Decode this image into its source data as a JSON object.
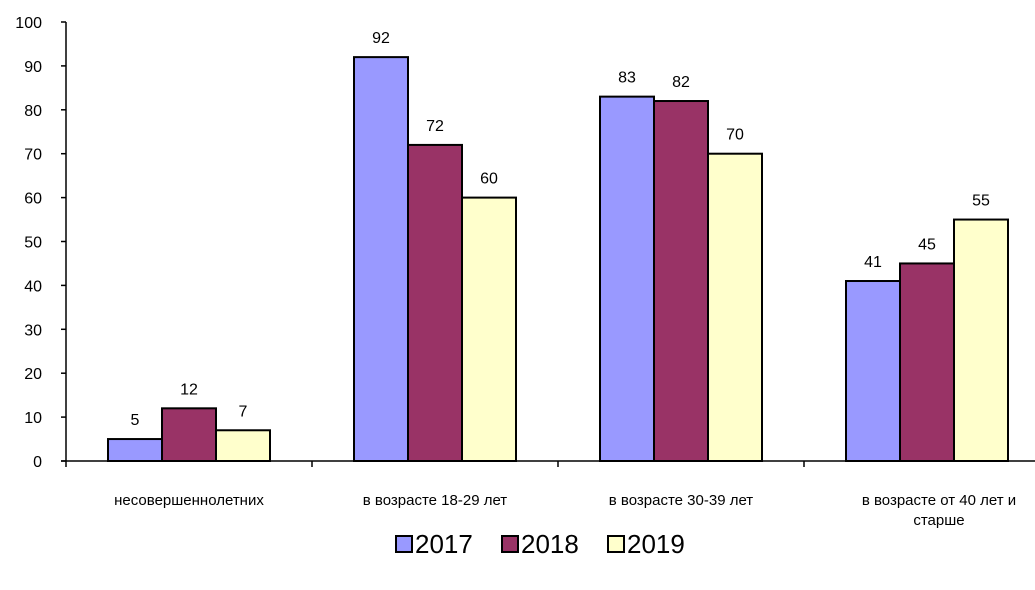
{
  "chart_data": {
    "type": "bar",
    "categories": [
      [
        "несовершеннолетних"
      ],
      [
        "в возрасте 18-29 лет"
      ],
      [
        "в возрасте 30-39 лет"
      ],
      [
        "в возрасте от 40 лет и",
        "старше"
      ]
    ],
    "series": [
      {
        "name": "2017",
        "color": "#9999ff",
        "values": [
          5,
          92,
          83,
          41
        ]
      },
      {
        "name": "2018",
        "color": "#993366",
        "values": [
          12,
          72,
          82,
          45
        ]
      },
      {
        "name": "2019",
        "color": "#ffffcc",
        "values": [
          7,
          60,
          70,
          55
        ]
      }
    ],
    "ylim": [
      0,
      100
    ],
    "yticks": [
      0,
      10,
      20,
      30,
      40,
      50,
      60,
      70,
      80,
      90,
      100
    ],
    "grid": false,
    "legend": "bottom",
    "title": "",
    "xlabel": "",
    "ylabel": ""
  }
}
